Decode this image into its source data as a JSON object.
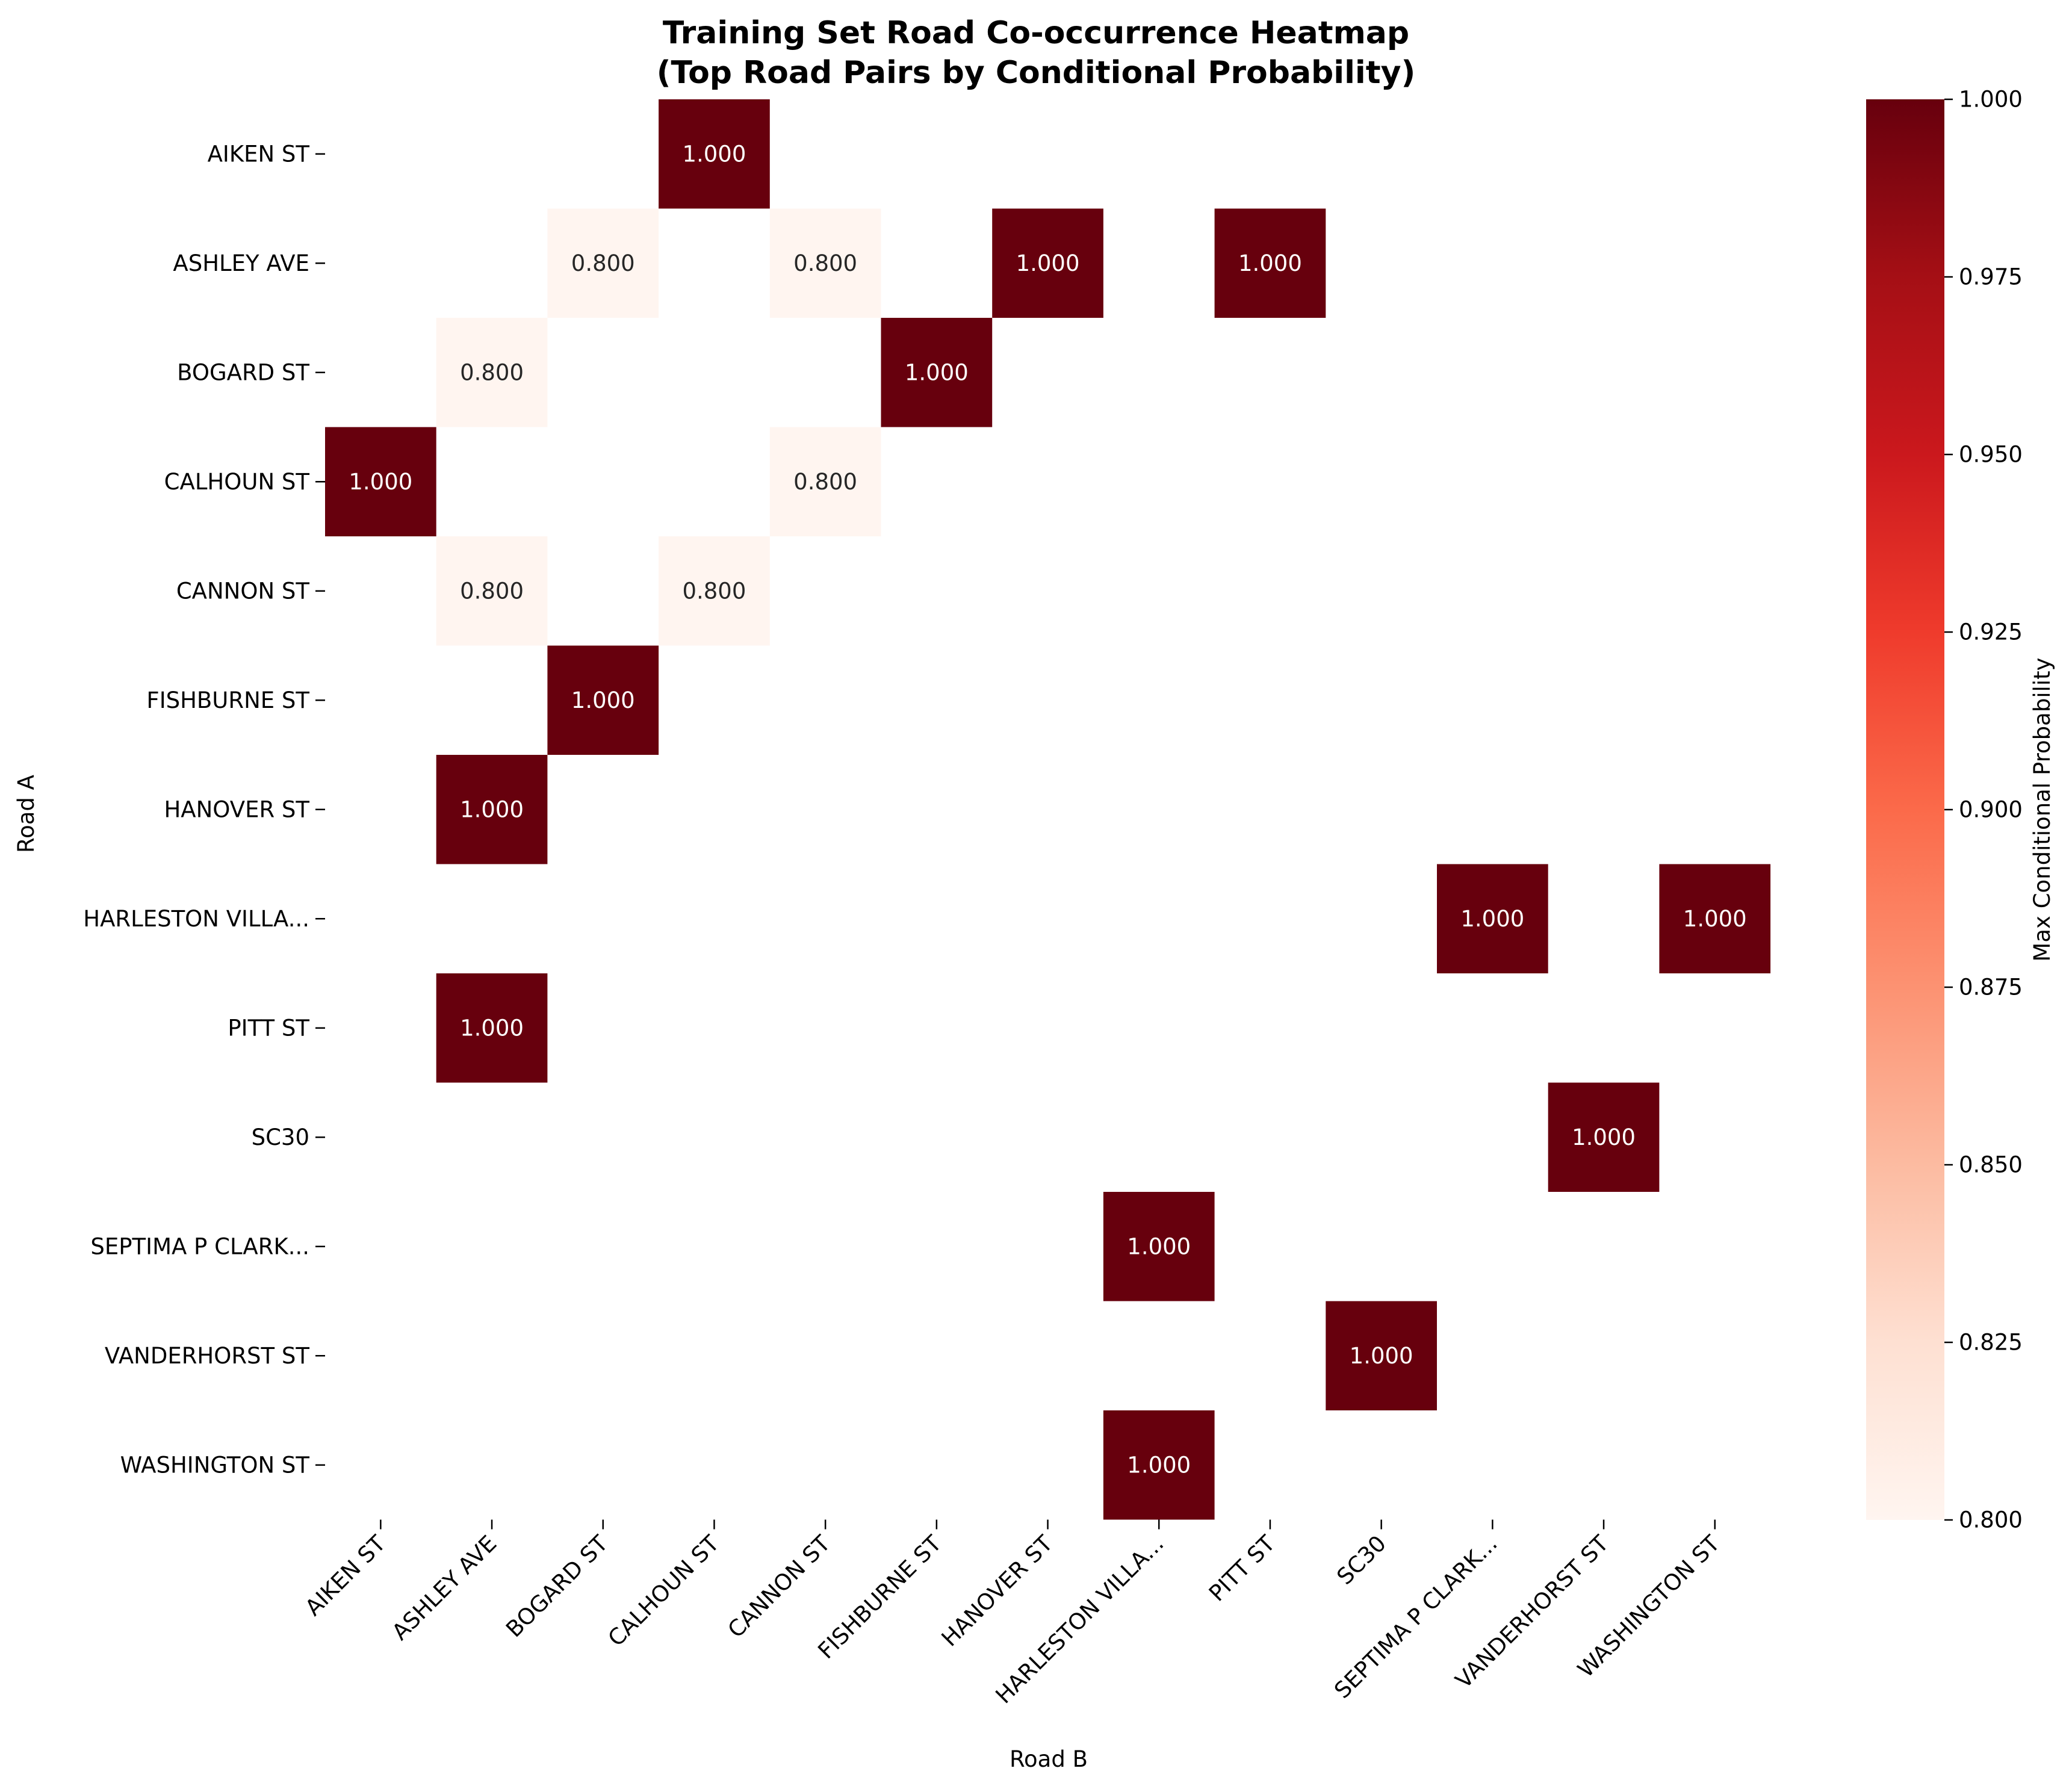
{
  "chart_data": {
    "type": "heatmap",
    "title_lines": [
      "Training Set Road Co-occurrence Heatmap",
      "(Top Road Pairs by Conditional Probability)"
    ],
    "xlabel": "Road B",
    "ylabel": "Road A",
    "rows": [
      "AIKEN ST",
      "ASHLEY AVE",
      "BOGARD ST",
      "CALHOUN ST",
      "CANNON ST",
      "FISHBURNE ST",
      "HANOVER ST",
      "HARLESTON VILLA...",
      "PITT ST",
      "SC30",
      "SEPTIMA P CLARK...",
      "VANDERHORST ST",
      "WASHINGTON ST"
    ],
    "columns": [
      "AIKEN ST",
      "ASHLEY AVE",
      "BOGARD ST",
      "CALHOUN ST",
      "CANNON ST",
      "FISHBURNE ST",
      "HANOVER ST",
      "HARLESTON VILLA...",
      "PITT ST",
      "SC30",
      "SEPTIMA P CLARK...",
      "VANDERHORST ST",
      "WASHINGTON ST"
    ],
    "cells": [
      {
        "row": "AIKEN ST",
        "col": "CALHOUN ST",
        "value": 1.0,
        "label": "1.000"
      },
      {
        "row": "ASHLEY AVE",
        "col": "BOGARD ST",
        "value": 0.8,
        "label": "0.800"
      },
      {
        "row": "ASHLEY AVE",
        "col": "CANNON ST",
        "value": 0.8,
        "label": "0.800"
      },
      {
        "row": "ASHLEY AVE",
        "col": "HANOVER ST",
        "value": 1.0,
        "label": "1.000"
      },
      {
        "row": "ASHLEY AVE",
        "col": "PITT ST",
        "value": 1.0,
        "label": "1.000"
      },
      {
        "row": "BOGARD ST",
        "col": "ASHLEY AVE",
        "value": 0.8,
        "label": "0.800"
      },
      {
        "row": "BOGARD ST",
        "col": "FISHBURNE ST",
        "value": 1.0,
        "label": "1.000"
      },
      {
        "row": "CALHOUN ST",
        "col": "AIKEN ST",
        "value": 1.0,
        "label": "1.000"
      },
      {
        "row": "CALHOUN ST",
        "col": "CANNON ST",
        "value": 0.8,
        "label": "0.800"
      },
      {
        "row": "CANNON ST",
        "col": "ASHLEY AVE",
        "value": 0.8,
        "label": "0.800"
      },
      {
        "row": "CANNON ST",
        "col": "CALHOUN ST",
        "value": 0.8,
        "label": "0.800"
      },
      {
        "row": "FISHBURNE ST",
        "col": "BOGARD ST",
        "value": 1.0,
        "label": "1.000"
      },
      {
        "row": "HANOVER ST",
        "col": "ASHLEY AVE",
        "value": 1.0,
        "label": "1.000"
      },
      {
        "row": "HARLESTON VILLA...",
        "col": "SEPTIMA P CLARK...",
        "value": 1.0,
        "label": "1.000"
      },
      {
        "row": "HARLESTON VILLA...",
        "col": "WASHINGTON ST",
        "value": 1.0,
        "label": "1.000"
      },
      {
        "row": "PITT ST",
        "col": "ASHLEY AVE",
        "value": 1.0,
        "label": "1.000"
      },
      {
        "row": "SC30",
        "col": "VANDERHORST ST",
        "value": 1.0,
        "label": "1.000"
      },
      {
        "row": "SEPTIMA P CLARK...",
        "col": "HARLESTON VILLA...",
        "value": 1.0,
        "label": "1.000"
      },
      {
        "row": "VANDERHORST ST",
        "col": "SC30",
        "value": 1.0,
        "label": "1.000"
      },
      {
        "row": "WASHINGTON ST",
        "col": "HARLESTON VILLA...",
        "value": 1.0,
        "label": "1.000"
      }
    ],
    "colorbar": {
      "label": "Max Conditional Probability",
      "min": 0.8,
      "max": 1.0,
      "ticks": [
        "0.800",
        "0.825",
        "0.850",
        "0.875",
        "0.900",
        "0.925",
        "0.950",
        "0.975",
        "1.000"
      ],
      "colormap": "Reds",
      "low_color": "#fff5f0",
      "high_color": "#67000d"
    },
    "grid": false,
    "legend": "colorbar-right"
  }
}
